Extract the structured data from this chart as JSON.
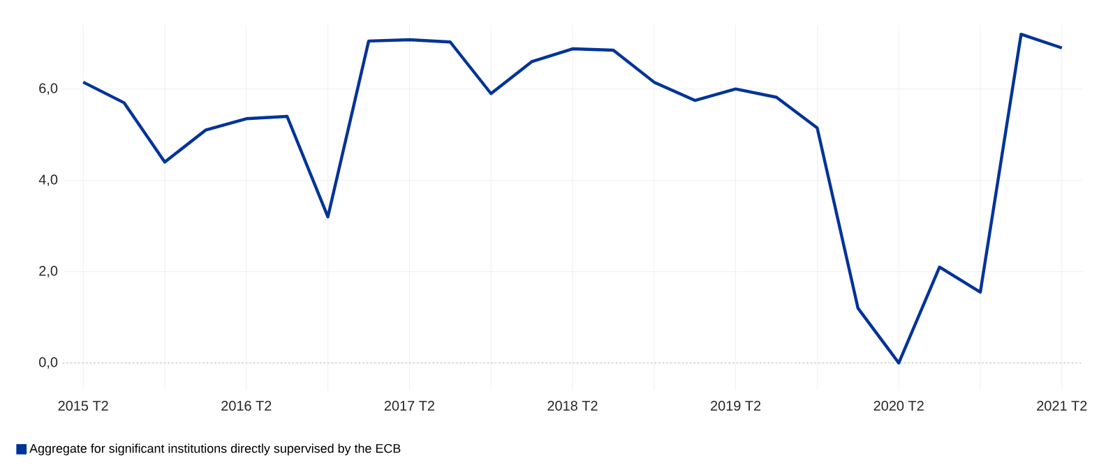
{
  "chart_data": {
    "type": "line",
    "categories": [
      "2015 T2",
      null,
      null,
      null,
      "2016 T2",
      null,
      null,
      null,
      "2017 T2",
      null,
      null,
      null,
      "2018 T2",
      null,
      null,
      null,
      "2019 T2",
      null,
      null,
      null,
      "2020 T2",
      null,
      null,
      null,
      "2021 T2"
    ],
    "series": [
      {
        "name": "Aggregate for significant institutions directly supervised by the ECB",
        "color": "#003399",
        "values": [
          6.15,
          5.7,
          4.4,
          5.1,
          5.35,
          5.4,
          3.2,
          7.05,
          7.08,
          7.03,
          5.9,
          6.6,
          6.88,
          6.85,
          6.15,
          5.75,
          6.0,
          5.82,
          5.15,
          1.2,
          0.0,
          2.1,
          1.55,
          7.2,
          6.9
        ]
      }
    ],
    "ylim": [
      -0.6,
      7.4
    ],
    "yticks": [
      {
        "value": 0,
        "label": "0,0"
      },
      {
        "value": 2,
        "label": "2,0"
      },
      {
        "value": 4,
        "label": "4,0"
      },
      {
        "value": 6,
        "label": "6,0"
      }
    ],
    "ref_lines": [
      {
        "axis": "y",
        "value": 0,
        "color": "#bbbbbb",
        "line_style": "dotted"
      }
    ],
    "grid": true,
    "legend": "bottom",
    "marker": "none",
    "line_style": "solid"
  }
}
